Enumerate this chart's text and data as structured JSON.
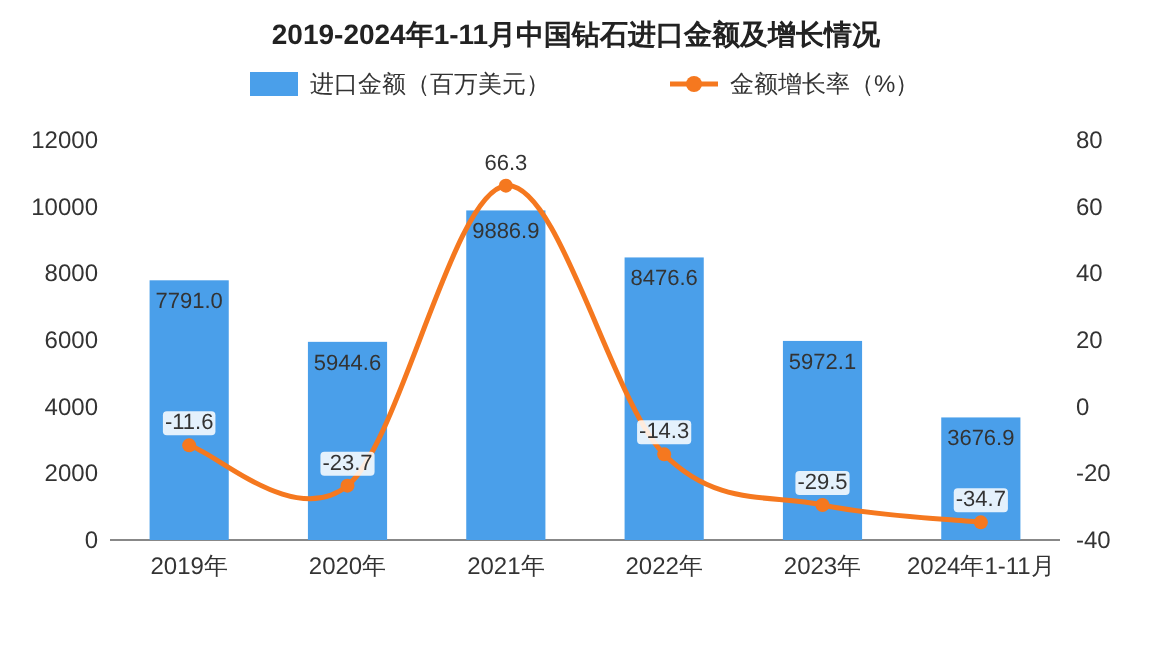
{
  "chart_data": {
    "type": "bar",
    "title": "2019-2024年1-11月中国钻石进口金额及增长情况",
    "categories": [
      "2019年",
      "2020年",
      "2021年",
      "2022年",
      "2023年",
      "2024年1-11月"
    ],
    "series": [
      {
        "name": "进口金额（百万美元）",
        "color": "#4a9fea",
        "values": [
          7791.0,
          5944.6,
          9886.9,
          8476.6,
          5972.1,
          3676.9
        ],
        "value_labels": [
          "7791.0",
          "5944.6",
          "9886.9",
          "8476.6",
          "5972.1",
          "3676.9"
        ]
      },
      {
        "name": "金额增长率（%）",
        "type": "line",
        "axis": "y2",
        "color": "#f5781f",
        "marker": "circle",
        "values": [
          -11.6,
          -23.7,
          66.3,
          -14.3,
          -29.5,
          -34.7
        ],
        "value_labels": [
          "-11.6",
          "-23.7",
          "66.3",
          "-14.3",
          "-29.5",
          "-34.7"
        ]
      }
    ],
    "ylim": [
      0,
      12000
    ],
    "yticks": [
      0,
      2000,
      4000,
      6000,
      8000,
      10000,
      12000
    ],
    "y2lim": [
      -40,
      80
    ],
    "y2ticks": [
      -40,
      -20,
      0,
      20,
      40,
      60,
      80
    ],
    "legend": "top"
  }
}
